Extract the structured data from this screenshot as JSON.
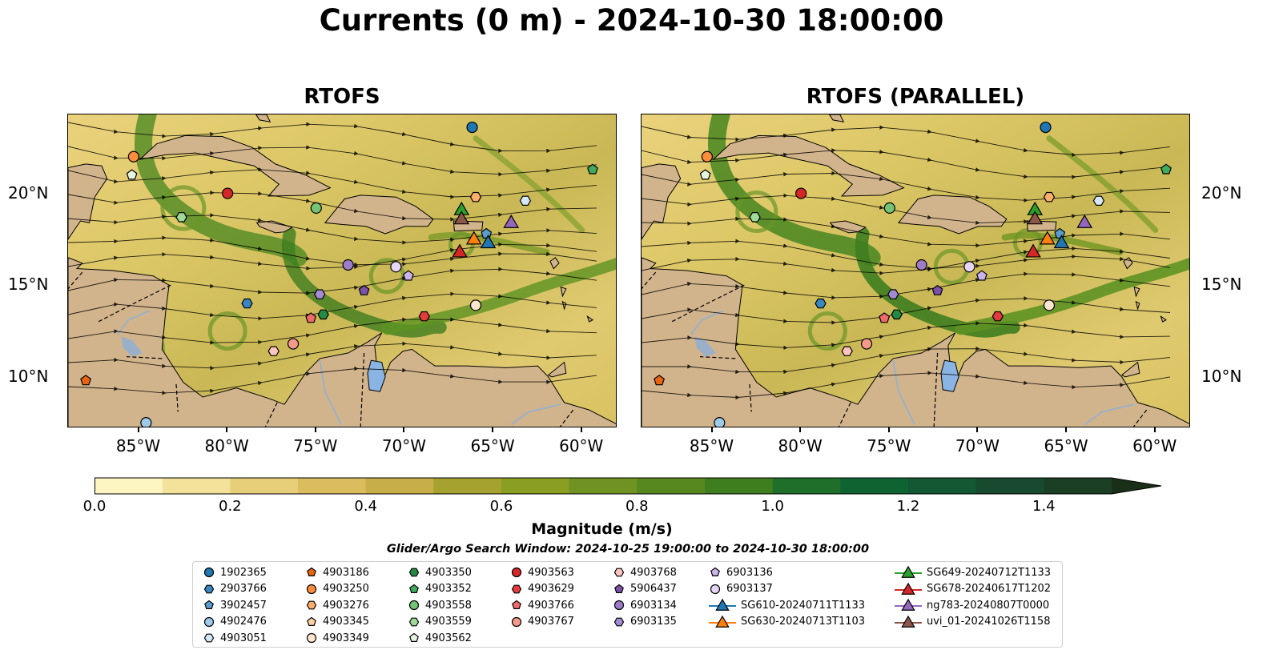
{
  "title": "Currents (0 m) - 2024-10-30 18:00:00",
  "panels": [
    {
      "title": "RTOFS"
    },
    {
      "title": "RTOFS (PARALLEL)"
    }
  ],
  "axes": {
    "lon_ticks": [
      "85°W",
      "80°W",
      "75°W",
      "70°W",
      "65°W",
      "60°W"
    ],
    "lat_ticks": [
      "20°N",
      "15°N",
      "10°N"
    ],
    "lon_range": [
      -89,
      -58
    ],
    "lat_range": [
      7.2,
      24.3
    ]
  },
  "colorbar": {
    "label": "Magnitude (m/s)",
    "ticks": [
      "0.0",
      "0.2",
      "0.4",
      "0.6",
      "0.8",
      "1.0",
      "1.2",
      "1.4"
    ],
    "range": [
      0,
      1.5
    ],
    "step": 0.1,
    "extend": "max",
    "colors": [
      "#fdf6c3",
      "#f4e29a",
      "#e7cf79",
      "#d9bd5f",
      "#c8ae48",
      "#a5a230",
      "#8a9e22",
      "#6f9222",
      "#57881f",
      "#3f7e1f",
      "#1f6f2a",
      "#0e6331",
      "#115833",
      "#174a2e",
      "#1b3f24",
      "#1a2f17"
    ]
  },
  "search_window": "Glider/Argo Search Window: 2024-10-25 19:00:00 to 2024-10-30 18:00:00",
  "land_color": "#d2b48c",
  "legend": {
    "columns": [
      [
        {
          "label": "1902365",
          "marker": "circle",
          "color": "#1f77b4"
        },
        {
          "label": "2903766",
          "marker": "hexagon",
          "color": "#3a86c0"
        },
        {
          "label": "3902457",
          "marker": "pentagon",
          "color": "#5a9bd0"
        },
        {
          "label": "4902476",
          "marker": "circle",
          "color": "#9ecae9"
        },
        {
          "label": "4903051",
          "marker": "hexagon",
          "color": "#d6e8f7"
        }
      ],
      [
        {
          "label": "4903186",
          "marker": "pentagon",
          "color": "#e6650e"
        },
        {
          "label": "4903250",
          "marker": "circle",
          "color": "#fd8d3c"
        },
        {
          "label": "4903276",
          "marker": "hexagon",
          "color": "#fdae6b"
        },
        {
          "label": "4903345",
          "marker": "pentagon",
          "color": "#fdd0a2"
        },
        {
          "label": "4903349",
          "marker": "circle",
          "color": "#fee6ce"
        }
      ],
      [
        {
          "label": "4903350",
          "marker": "hexagon",
          "color": "#238b45"
        },
        {
          "label": "4903352",
          "marker": "pentagon",
          "color": "#41ab5d"
        },
        {
          "label": "4903558",
          "marker": "circle",
          "color": "#74c476"
        },
        {
          "label": "4903559",
          "marker": "hexagon",
          "color": "#a1d99b"
        },
        {
          "label": "4903562",
          "marker": "pentagon",
          "color": "#e5f5e0"
        }
      ],
      [
        {
          "label": "4903563",
          "marker": "circle",
          "color": "#d62728"
        },
        {
          "label": "4903629",
          "marker": "hexagon",
          "color": "#e33b3b"
        },
        {
          "label": "4903766",
          "marker": "pentagon",
          "color": "#ef6a6a"
        },
        {
          "label": "4903767",
          "marker": "circle",
          "color": "#f49a8c"
        }
      ],
      [
        {
          "label": "4903768",
          "marker": "hexagon",
          "color": "#fcc5c0"
        },
        {
          "label": "5906437",
          "marker": "pentagon",
          "color": "#7b52ab"
        },
        {
          "label": "6903134",
          "marker": "circle",
          "color": "#9e7cc9"
        },
        {
          "label": "6903135",
          "marker": "hexagon",
          "color": "#a58bd4"
        }
      ],
      [
        {
          "label": "6903136",
          "marker": "pentagon",
          "color": "#c9b3ea"
        },
        {
          "label": "6903137",
          "marker": "circle",
          "color": "#e6d5f7"
        },
        {
          "label": "SG610-20240711T1133",
          "marker": "triangle",
          "color": "#1f77b4"
        },
        {
          "label": "SG630-20240713T1103",
          "marker": "triangle",
          "color": "#ff7f0e"
        }
      ],
      [
        {
          "label": "SG649-20240712T1133",
          "marker": "triangle",
          "color": "#2ca02c"
        },
        {
          "label": "SG678-20240617T1202",
          "marker": "triangle",
          "color": "#d62728"
        },
        {
          "label": "ng783-20240807T0000",
          "marker": "triangle",
          "color": "#9467bd"
        },
        {
          "label": "uvi_01-20241026T1158",
          "marker": "triangle",
          "color": "#8c564b"
        }
      ]
    ]
  },
  "observations": [
    {
      "label": "1902365",
      "lon": -66.2,
      "lat": 23.6
    },
    {
      "label": "4903250",
      "lon": -85.3,
      "lat": 22.0
    },
    {
      "label": "4903562",
      "lon": -85.4,
      "lat": 21.0
    },
    {
      "label": "4903352",
      "lon": -59.4,
      "lat": 21.3
    },
    {
      "label": "4903563",
      "lon": -80.0,
      "lat": 20.0
    },
    {
      "label": "4903276",
      "lon": -66.0,
      "lat": 19.8
    },
    {
      "label": "4903051",
      "lon": -63.2,
      "lat": 19.6
    },
    {
      "label": "4903558",
      "lon": -75.0,
      "lat": 19.2
    },
    {
      "label": "4903559",
      "lon": -82.6,
      "lat": 18.7
    },
    {
      "label": "SG649-20240712T1133",
      "lon": -66.8,
      "lat": 19.1
    },
    {
      "label": "uvi_01-20241026T1158",
      "lon": -66.8,
      "lat": 18.6
    },
    {
      "label": "ng783-20240807T0000",
      "lon": -64.0,
      "lat": 18.4
    },
    {
      "label": "SG630-20240713T1103",
      "lon": -66.1,
      "lat": 17.5
    },
    {
      "label": "3902457",
      "lon": -65.4,
      "lat": 17.8
    },
    {
      "label": "SG610-20240711T1133",
      "lon": -65.3,
      "lat": 17.3
    },
    {
      "label": "SG678-20240617T1202",
      "lon": -66.9,
      "lat": 16.8
    },
    {
      "label": "6903134",
      "lon": -73.2,
      "lat": 16.1
    },
    {
      "label": "6903137",
      "lon": -70.5,
      "lat": 16.0
    },
    {
      "label": "6903136",
      "lon": -69.8,
      "lat": 15.5
    },
    {
      "label": "5906437",
      "lon": -72.3,
      "lat": 14.7
    },
    {
      "label": "6903135",
      "lon": -74.8,
      "lat": 14.5
    },
    {
      "label": "2903766",
      "lon": -78.9,
      "lat": 14.0
    },
    {
      "label": "4903349",
      "lon": -66.0,
      "lat": 13.9
    },
    {
      "label": "4903350",
      "lon": -74.6,
      "lat": 13.4
    },
    {
      "label": "4903766",
      "lon": -75.3,
      "lat": 13.2
    },
    {
      "label": "4903629",
      "lon": -68.9,
      "lat": 13.3
    },
    {
      "label": "4903767",
      "lon": -76.3,
      "lat": 11.8
    },
    {
      "label": "4903768",
      "lon": -77.4,
      "lat": 11.4
    },
    {
      "label": "4903186",
      "lon": -88.0,
      "lat": 9.8
    },
    {
      "label": "4902476",
      "lon": -84.6,
      "lat": 7.5
    }
  ]
}
